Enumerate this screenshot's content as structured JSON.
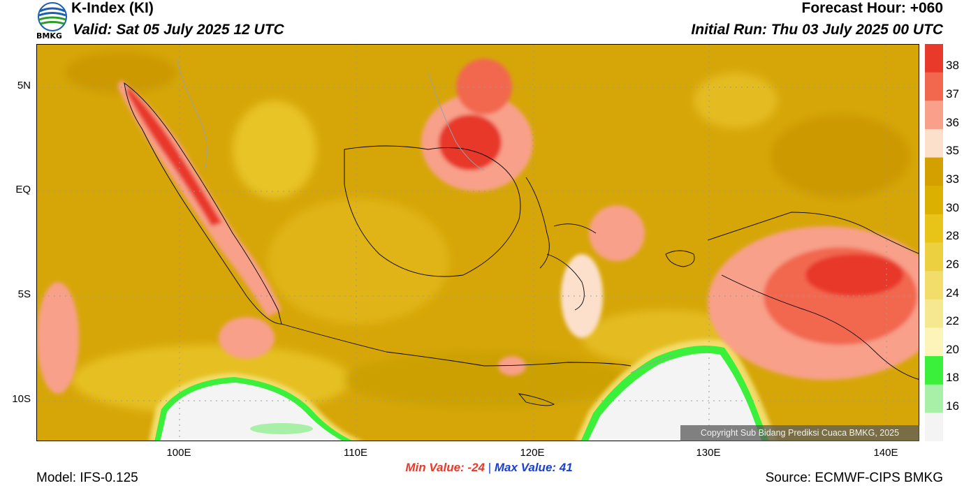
{
  "header": {
    "title": "K-Index (KI)",
    "valid": "Valid: Sat 05 July 2025 12 UTC",
    "forecast_hour": "Forecast Hour: +060",
    "initial_run": "Initial Run: Thu 03 July 2025 00 UTC",
    "logo_text": "BMKG"
  },
  "map": {
    "lat_labels": [
      "5N",
      "EQ",
      "5S",
      "10S"
    ],
    "lon_labels": [
      "100E",
      "110E",
      "120E",
      "130E",
      "140E"
    ],
    "copyright": "Copyright Sub Bidang Prediksi Cuaca BMKG, 2025"
  },
  "colorbar": {
    "labels": [
      "38",
      "37",
      "36",
      "35",
      "33",
      "30",
      "28",
      "26",
      "24",
      "22",
      "20",
      "18",
      "16"
    ],
    "colors": [
      "#e8392a",
      "#f2684f",
      "#f8a08a",
      "#fde0cc",
      "#d4a000",
      "#dcb000",
      "#e8c418",
      "#ecd040",
      "#f2dc6a",
      "#f6e890",
      "#fcf4b8",
      "#3af03a",
      "#a8f0a8",
      "#f4f4f4"
    ]
  },
  "stats": {
    "min_label": "Min Value: -24",
    "separator": "|",
    "max_label": "Max Value:  41"
  },
  "footer": {
    "model": "Model: IFS-0.125",
    "source": "Source: ECMWF-CIPS BMKG"
  }
}
